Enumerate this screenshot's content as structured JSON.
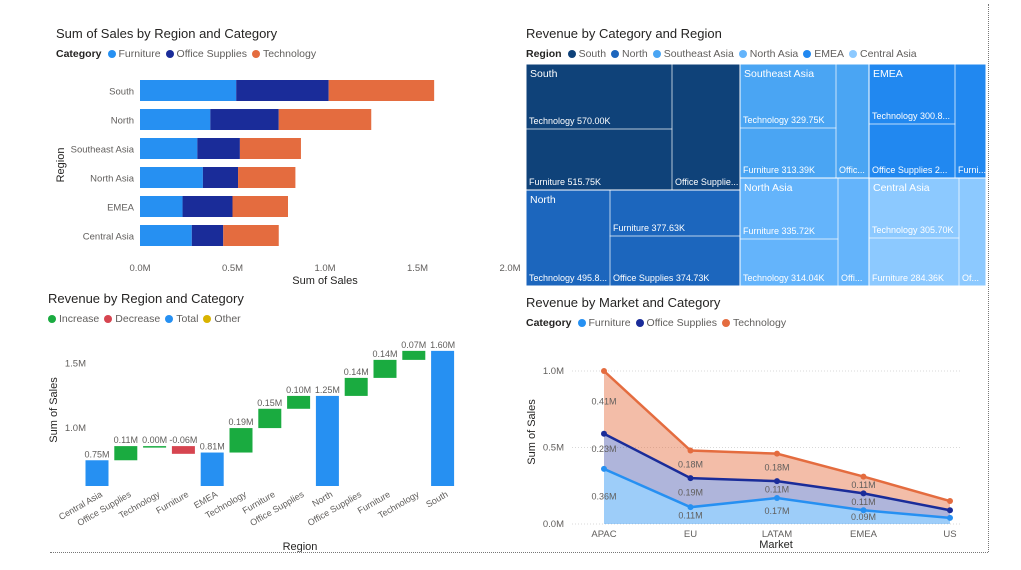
{
  "colors": {
    "furniture": "#2690f2",
    "office": "#1a2c99",
    "technology": "#e46c3f",
    "increase": "#1aab40",
    "decrease": "#d64550",
    "total": "#2690f2",
    "other": "#d9b300",
    "tm_south": "#0f4279",
    "tm_north": "#1c66bd",
    "tm_sea": "#4aa5f3",
    "tm_na": "#64b4fb",
    "tm_emea": "#2188f0",
    "tm_ca": "#8cc9ff"
  },
  "charts": {
    "c1": {
      "title": "Sum of Sales by Region and Category",
      "legend_title": "Category",
      "legend": [
        "Furniture",
        "Office Supplies",
        "Technology"
      ],
      "xticks": [
        "0.0M",
        "0.5M",
        "1.0M",
        "1.5M",
        "2.0M"
      ],
      "xlabel": "Sum of Sales",
      "ylabel": "Region"
    },
    "c2": {
      "title": "Revenue by Category and Region",
      "legend_title": "Region",
      "legend": [
        "South",
        "North",
        "Southeast Asia",
        "North Asia",
        "EMEA",
        "Central Asia"
      ]
    },
    "c3": {
      "title": "Revenue by Region and Category",
      "legend": [
        "Increase",
        "Decrease",
        "Total",
        "Other"
      ],
      "yticks": [
        "1.0M",
        "1.5M"
      ],
      "xlabel": "Region",
      "ylabel": "Sum of Sales"
    },
    "c4": {
      "title": "Revenue by Market and Category",
      "legend_title": "Category",
      "legend": [
        "Furniture",
        "Office Supplies",
        "Technology"
      ],
      "yticks": [
        "0.0M",
        "0.5M",
        "1.0M"
      ],
      "xlabel": "Market",
      "ylabel": "Sum of Sales"
    }
  },
  "chart_data": [
    {
      "type": "bar",
      "orientation": "horizontal",
      "stacked": true,
      "title": "Sum of Sales by Region and Category",
      "categories": [
        "South",
        "North",
        "Southeast Asia",
        "North Asia",
        "EMEA",
        "Central Asia"
      ],
      "series": [
        {
          "name": "Furniture",
          "values": [
            0.52,
            0.38,
            0.31,
            0.34,
            0.23,
            0.28
          ]
        },
        {
          "name": "Office Supplies",
          "values": [
            0.5,
            0.37,
            0.23,
            0.19,
            0.27,
            0.17
          ]
        },
        {
          "name": "Technology",
          "values": [
            0.57,
            0.5,
            0.33,
            0.31,
            0.3,
            0.3
          ]
        }
      ],
      "xlabel": "Sum of Sales",
      "ylabel": "Region",
      "xlim": [
        0,
        2.0
      ],
      "unit": "M",
      "legend_position": "top-left"
    },
    {
      "type": "treemap",
      "title": "Revenue by Category and Region",
      "groups": [
        {
          "name": "South",
          "items": [
            {
              "label": "Technology 570.00K",
              "value": 570.0
            },
            {
              "label": "Furniture 515.75K",
              "value": 515.75
            },
            {
              "label": "Office Supplie...",
              "value": 510
            }
          ]
        },
        {
          "name": "North",
          "items": [
            {
              "label": "Technology 495.8...",
              "value": 495.8
            },
            {
              "label": "Furniture 377.63K",
              "value": 377.63
            },
            {
              "label": "Office Supplies 374.73K",
              "value": 374.73
            }
          ]
        },
        {
          "name": "Southeast Asia",
          "items": [
            {
              "label": "Technology 329.75K",
              "value": 329.75
            },
            {
              "label": "Furniture 313.39K",
              "value": 313.39
            },
            {
              "label": "Offic...",
              "value": 180
            }
          ]
        },
        {
          "name": "North Asia",
          "items": [
            {
              "label": "Furniture 335.72K",
              "value": 335.72
            },
            {
              "label": "Technology 314.04K",
              "value": 314.04
            },
            {
              "label": "Offi...",
              "value": 160
            }
          ]
        },
        {
          "name": "EMEA",
          "items": [
            {
              "label": "Technology 300.8...",
              "value": 300.8
            },
            {
              "label": "Office Supplies 2...",
              "value": 270
            },
            {
              "label": "Furni...",
              "value": 230
            }
          ]
        },
        {
          "name": "Central Asia",
          "items": [
            {
              "label": "Technology 305.70K",
              "value": 305.7
            },
            {
              "label": "Furniture 284.36K",
              "value": 284.36
            },
            {
              "label": "Of...",
              "value": 170
            }
          ]
        }
      ],
      "unit": "K"
    },
    {
      "type": "waterfall",
      "title": "Revenue by Region and Category",
      "categories": [
        "Central Asia",
        "Office Supplies",
        "Technology",
        "Furniture",
        "EMEA",
        "Technology",
        "Furniture",
        "Office Supplies",
        "North",
        "Office Supplies",
        "Furniture",
        "Technology",
        "South"
      ],
      "kinds": [
        "total",
        "increase",
        "increase",
        "decrease",
        "total",
        "increase",
        "increase",
        "increase",
        "total",
        "increase",
        "increase",
        "increase",
        "total"
      ],
      "start": [
        0,
        0.75,
        0.86,
        0.86,
        0,
        0.81,
        1.0,
        1.15,
        0,
        1.25,
        1.39,
        1.53,
        0
      ],
      "end": [
        0.75,
        0.86,
        0.86,
        0.8,
        0.81,
        1.0,
        1.15,
        1.25,
        1.25,
        1.39,
        1.53,
        1.6,
        1.6
      ],
      "labels": [
        "0.75M",
        "0.11M",
        "0.00M",
        "-0.06M",
        "0.81M",
        "0.19M",
        "0.15M",
        "0.10M",
        "1.25M",
        "0.14M",
        "0.14M",
        "0.07M",
        "1.60M"
      ],
      "xlabel": "Region",
      "ylabel": "Sum of Sales",
      "ylim": [
        0.55,
        1.7
      ],
      "unit": "M"
    },
    {
      "type": "area",
      "stacked": true,
      "title": "Revenue by Market and Category",
      "categories": [
        "APAC",
        "EU",
        "LATAM",
        "EMEA",
        "US"
      ],
      "series": [
        {
          "name": "Furniture",
          "values": [
            0.36,
            0.11,
            0.17,
            0.09,
            0.04
          ]
        },
        {
          "name": "Office Supplies",
          "values": [
            0.23,
            0.19,
            0.11,
            0.11,
            0.05
          ]
        },
        {
          "name": "Technology",
          "values": [
            0.41,
            0.18,
            0.18,
            0.11,
            0.06
          ]
        }
      ],
      "cumulative_labels": [
        [
          "0.36M",
          "0.11M",
          "0.17M",
          "0.09M",
          ""
        ],
        [
          "0.23M",
          "0.19M",
          "0.11M",
          "0.11M",
          ""
        ],
        [
          "0.41M",
          "0.18M",
          "0.18M",
          "0.11M",
          ""
        ]
      ],
      "xlabel": "Market",
      "ylabel": "Sum of Sales",
      "ylim": [
        0,
        1.0
      ],
      "unit": "M"
    }
  ]
}
